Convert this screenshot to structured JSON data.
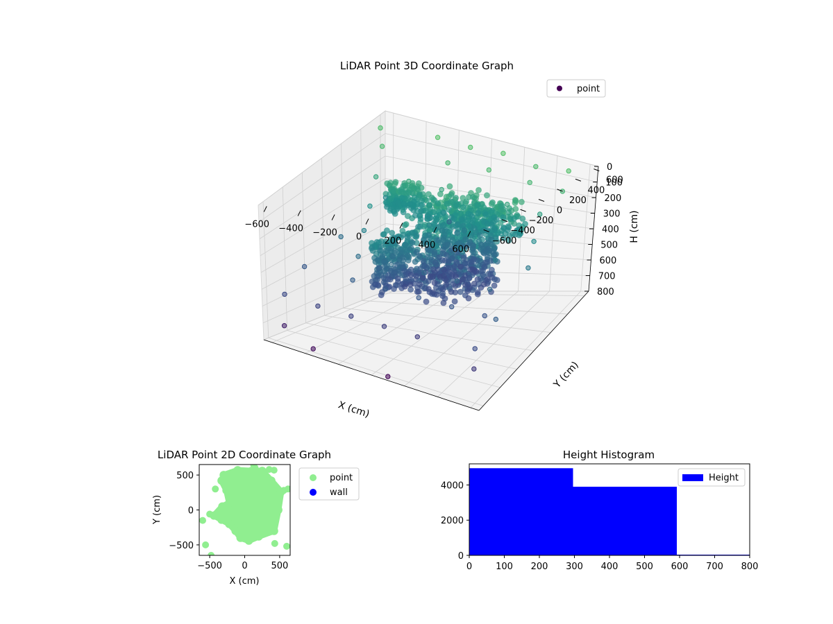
{
  "chart_data": [
    {
      "type": "scatter",
      "title": "LiDAR Point 3D Coordinate Graph",
      "xlabel": "X (cm)",
      "ylabel": "Y (cm)",
      "zlabel": "H (cm)",
      "xlim": [
        -650,
        650
      ],
      "ylim": [
        -650,
        650
      ],
      "zlim": [
        0,
        800
      ],
      "z_inverted": true,
      "x_ticks": [
        -600,
        -400,
        -200,
        0,
        200,
        400,
        600
      ],
      "y_ticks": [
        -600,
        -400,
        -200,
        0,
        200,
        400,
        600
      ],
      "z_ticks": [
        0,
        100,
        200,
        300,
        400,
        500,
        600,
        700,
        800
      ],
      "legend": [
        "point"
      ],
      "legend_loc": "upper right",
      "colormap": "viridis",
      "grid": true,
      "points": [
        [
          -650,
          600,
          60
        ],
        [
          -300,
          600,
          40
        ],
        [
          -100,
          600,
          50
        ],
        [
          100,
          600,
          40
        ],
        [
          300,
          600,
          70
        ],
        [
          500,
          600,
          50
        ],
        [
          -550,
          450,
          80
        ],
        [
          -150,
          450,
          90
        ],
        [
          100,
          450,
          80
        ],
        [
          350,
          450,
          100
        ],
        [
          550,
          450,
          110
        ],
        [
          -500,
          300,
          170
        ],
        [
          -300,
          300,
          160
        ],
        [
          -100,
          300,
          170
        ],
        [
          100,
          300,
          180
        ],
        [
          300,
          300,
          180
        ],
        [
          500,
          300,
          200
        ],
        [
          -450,
          150,
          260
        ],
        [
          -250,
          150,
          250
        ],
        [
          -50,
          150,
          260
        ],
        [
          150,
          150,
          270
        ],
        [
          350,
          150,
          280
        ],
        [
          550,
          150,
          290
        ],
        [
          -400,
          0,
          330
        ],
        [
          -200,
          0,
          340
        ],
        [
          0,
          0,
          340
        ],
        [
          200,
          0,
          350
        ],
        [
          400,
          0,
          360
        ],
        [
          600,
          0,
          370
        ],
        [
          -350,
          -150,
          410
        ],
        [
          -150,
          -150,
          420
        ],
        [
          50,
          -150,
          430
        ],
        [
          250,
          -150,
          440
        ],
        [
          450,
          -150,
          450
        ],
        [
          -300,
          -300,
          480
        ],
        [
          -100,
          -300,
          490
        ],
        [
          100,
          -300,
          500
        ],
        [
          300,
          -300,
          510
        ],
        [
          500,
          -300,
          520
        ],
        [
          -600,
          -500,
          560
        ],
        [
          -400,
          -500,
          580
        ],
        [
          -200,
          -500,
          590
        ],
        [
          0,
          -500,
          600
        ],
        [
          200,
          -500,
          610
        ],
        [
          -650,
          -200,
          500
        ],
        [
          -600,
          100,
          420
        ],
        [
          -550,
          -600,
          700
        ],
        [
          -500,
          400,
          300
        ],
        [
          600,
          -600,
          550
        ],
        [
          620,
          -400,
          480
        ],
        [
          620,
          -650,
          620
        ],
        [
          -350,
          -650,
          760
        ],
        [
          100,
          -650,
          780
        ],
        [
          -250,
          650,
          460
        ]
      ],
      "clusters": [
        {
          "cx": 100,
          "cy": 50,
          "hmin": 200,
          "hmax": 560,
          "rx": 260,
          "ry": 260,
          "n": 620
        },
        {
          "cx": 150,
          "cy": 200,
          "hmin": 150,
          "hmax": 300,
          "rx": 320,
          "ry": 160,
          "n": 260
        },
        {
          "cx": -300,
          "cy": 250,
          "hmin": 170,
          "hmax": 290,
          "rx": 110,
          "ry": 90,
          "n": 150
        },
        {
          "cx": -150,
          "cy": -150,
          "hmin": 280,
          "hmax": 540,
          "rx": 90,
          "ry": 140,
          "n": 180
        }
      ]
    },
    {
      "type": "scatter",
      "title": "LiDAR Point 2D Coordinate Graph",
      "xlabel": "X (cm)",
      "ylabel": "Y (cm)",
      "xlim": [
        -650,
        650
      ],
      "ylim": [
        -650,
        650
      ],
      "x_ticks": [
        -500,
        0,
        500
      ],
      "y_ticks": [
        -500,
        0,
        500
      ],
      "series": [
        {
          "name": "point",
          "color": "#90ee90"
        },
        {
          "name": "wall",
          "color": "#0000ff"
        }
      ],
      "blob_outline": [
        [
          -300,
          500
        ],
        [
          -100,
          570
        ],
        [
          100,
          560
        ],
        [
          250,
          560
        ],
        [
          380,
          420
        ],
        [
          520,
          260
        ],
        [
          480,
          0
        ],
        [
          420,
          -300
        ],
        [
          200,
          -380
        ],
        [
          60,
          -440
        ],
        [
          -60,
          -400
        ],
        [
          -130,
          -300
        ],
        [
          -220,
          -200
        ],
        [
          -330,
          -140
        ],
        [
          -440,
          -80
        ],
        [
          -320,
          50
        ],
        [
          -220,
          100
        ],
        [
          -260,
          280
        ],
        [
          -330,
          420
        ]
      ],
      "outliers": [
        [
          -600,
          -150
        ],
        [
          -500,
          -60
        ],
        [
          -560,
          -500
        ],
        [
          -480,
          -650
        ],
        [
          430,
          -480
        ],
        [
          600,
          -520
        ],
        [
          560,
          280
        ],
        [
          620,
          300
        ],
        [
          350,
          580
        ],
        [
          420,
          570
        ],
        [
          130,
          640
        ],
        [
          -420,
          300
        ],
        [
          150,
          600
        ]
      ],
      "legend_loc": "outside right"
    },
    {
      "type": "bar",
      "title": "Height Histogram",
      "bins": [
        [
          0,
          296
        ],
        [
          296,
          592
        ],
        [
          592,
          800
        ]
      ],
      "values": [
        4950,
        3900,
        40
      ],
      "xlim": [
        0,
        800
      ],
      "ylim": [
        0,
        5200
      ],
      "x_ticks": [
        0,
        100,
        200,
        300,
        400,
        500,
        600,
        700,
        800
      ],
      "y_ticks": [
        0,
        2000,
        4000
      ],
      "series": [
        {
          "name": "Height",
          "color": "#0000ff"
        }
      ],
      "legend_loc": "upper right"
    }
  ]
}
